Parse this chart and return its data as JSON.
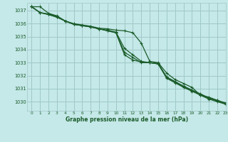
{
  "title": "Graphe pression niveau de la mer (hPa)",
  "bg_color": "#c5e8e8",
  "grid_color": "#a0c8c8",
  "line_color": "#1a5c2a",
  "text_color": "#1a5c2a",
  "xlim": [
    -0.5,
    23
  ],
  "ylim": [
    1029.3,
    1037.6
  ],
  "yticks": [
    1030,
    1031,
    1032,
    1033,
    1034,
    1035,
    1036,
    1037
  ],
  "xticks": [
    0,
    1,
    2,
    3,
    4,
    5,
    6,
    7,
    8,
    9,
    10,
    11,
    12,
    13,
    14,
    15,
    16,
    17,
    18,
    19,
    20,
    21,
    22,
    23
  ],
  "series": [
    [
      1037.3,
      1037.3,
      1036.8,
      1036.6,
      1036.2,
      1036.0,
      1035.9,
      1035.8,
      1035.65,
      1035.6,
      1035.5,
      1035.45,
      1035.3,
      1034.5,
      1033.1,
      1033.0,
      1032.2,
      1031.7,
      1031.4,
      1031.1,
      1030.5,
      1030.35,
      1030.1,
      1029.85
    ],
    [
      1037.3,
      1036.85,
      1036.75,
      1036.55,
      1036.2,
      1035.95,
      1035.85,
      1035.75,
      1035.6,
      1035.5,
      1035.35,
      1034.1,
      1033.6,
      1033.1,
      1033.0,
      1032.9,
      1031.8,
      1031.45,
      1031.1,
      1030.8,
      1030.5,
      1030.2,
      1030.0,
      1029.8
    ],
    [
      1037.3,
      1036.85,
      1036.7,
      1036.5,
      1036.2,
      1035.95,
      1035.85,
      1035.75,
      1035.6,
      1035.45,
      1035.3,
      1033.8,
      1033.4,
      1033.0,
      1033.0,
      1032.9,
      1031.85,
      1031.5,
      1031.15,
      1030.85,
      1030.55,
      1030.25,
      1030.05,
      1029.85
    ],
    [
      1037.3,
      1036.85,
      1036.7,
      1036.5,
      1036.2,
      1035.95,
      1035.85,
      1035.75,
      1035.6,
      1035.45,
      1035.3,
      1033.6,
      1033.2,
      1033.05,
      1033.0,
      1032.95,
      1031.9,
      1031.55,
      1031.2,
      1030.9,
      1030.6,
      1030.3,
      1030.1,
      1029.9
    ]
  ]
}
